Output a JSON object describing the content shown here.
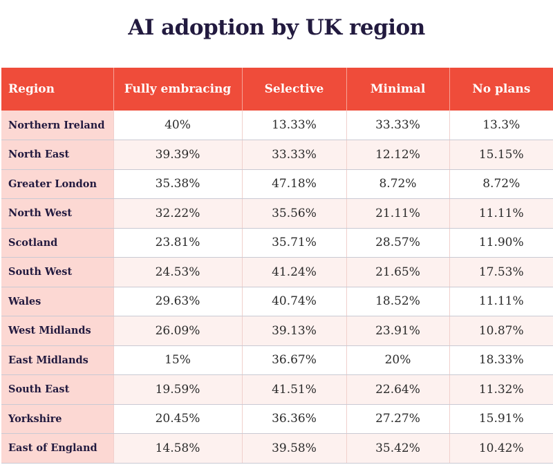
{
  "chart_data": {
    "type": "table",
    "title": "AI adoption by UK region",
    "columns": [
      "Region",
      "Fully embracing",
      "Selective",
      "Minimal",
      "No plans"
    ],
    "rows": [
      {
        "region": "Northern Ireland",
        "values": [
          "40%",
          "13.33%",
          "33.33%",
          "13.3%"
        ]
      },
      {
        "region": "North East",
        "values": [
          "39.39%",
          "33.33%",
          "12.12%",
          "15.15%"
        ]
      },
      {
        "region": "Greater London",
        "values": [
          "35.38%",
          "47.18%",
          "8.72%",
          "8.72%"
        ]
      },
      {
        "region": "North West",
        "values": [
          "32.22%",
          "35.56%",
          "21.11%",
          "11.11%"
        ]
      },
      {
        "region": "Scotland",
        "values": [
          "23.81%",
          "35.71%",
          "28.57%",
          "11.90%"
        ]
      },
      {
        "region": "South West",
        "values": [
          "24.53%",
          "41.24%",
          "21.65%",
          "17.53%"
        ]
      },
      {
        "region": "Wales",
        "values": [
          "29.63%",
          "40.74%",
          "18.52%",
          "11.11%"
        ]
      },
      {
        "region": "West Midlands",
        "values": [
          "26.09%",
          "39.13%",
          "23.91%",
          "10.87%"
        ]
      },
      {
        "region": "East Midlands",
        "values": [
          "15%",
          "36.67%",
          "20%",
          "18.33%"
        ]
      },
      {
        "region": "South East",
        "values": [
          "19.59%",
          "41.51%",
          "22.64%",
          "11.32%"
        ]
      },
      {
        "region": "Yorkshire",
        "values": [
          "20.45%",
          "36.36%",
          "27.27%",
          "15.91%"
        ]
      },
      {
        "region": "East of England",
        "values": [
          "14.58%",
          "39.58%",
          "35.42%",
          "10.42%"
        ]
      }
    ],
    "colors": {
      "header_bg": "#ef4c3a",
      "region_bg": "#fcd8d3",
      "title": "#221a3f"
    }
  }
}
